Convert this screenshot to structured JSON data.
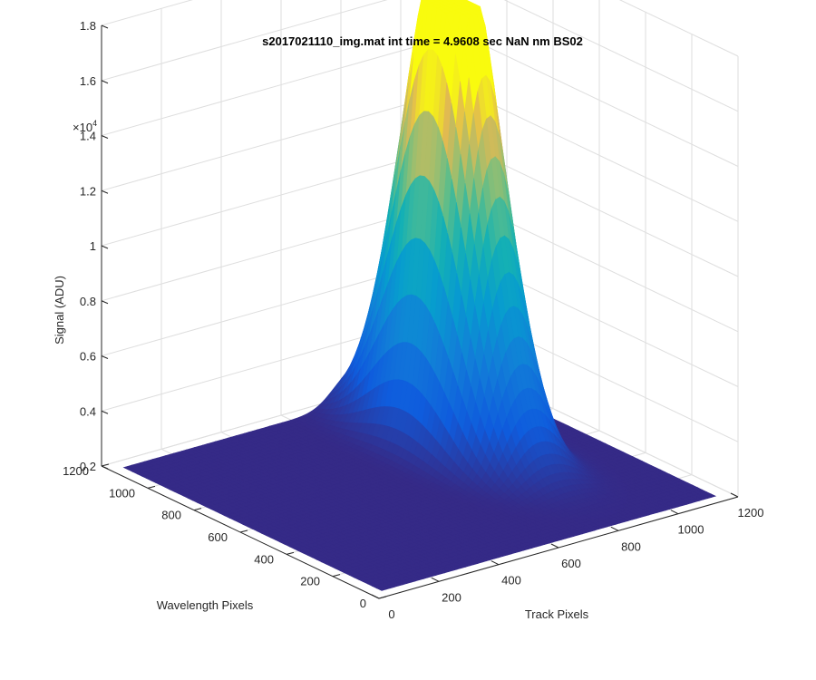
{
  "chart_data": {
    "type": "surface3d",
    "title": "s2017021110_img.mat int time = 4.9608 sec  NaN nm BS02",
    "xlabel": "Track Pixels",
    "ylabel": "Wavelength Pixels",
    "zlabel": "Signal (ADU)",
    "z_exponent_label": "×10",
    "z_exponent_power": "4",
    "xlim": [
      0,
      1200
    ],
    "ylim": [
      0,
      1200
    ],
    "zlim": [
      0.2,
      1.8
    ],
    "x_ticks": [
      "0",
      "200",
      "400",
      "600",
      "800",
      "1000",
      "1200"
    ],
    "y_ticks": [
      "0",
      "200",
      "400",
      "600",
      "800",
      "1000",
      "1200"
    ],
    "z_ticks": [
      "0.2",
      "0.4",
      "0.6",
      "0.8",
      "1",
      "1.2",
      "1.4",
      "1.6",
      "1.8"
    ],
    "grid": true,
    "colormap": "parula",
    "baseline_z": 0.2,
    "peaks": [
      {
        "track_center": 790,
        "track_width": 60,
        "wavelength_center": 760,
        "wavelength_width": 170,
        "peak_z": 1.56
      },
      {
        "track_center": 880,
        "track_width": 60,
        "wavelength_center": 760,
        "wavelength_width": 170,
        "peak_z": 1.46
      }
    ],
    "colors": {
      "surface_low": "#352a87",
      "surface_high": "#f9fb0e",
      "grid": "#dedede",
      "axis": "#262626"
    }
  }
}
